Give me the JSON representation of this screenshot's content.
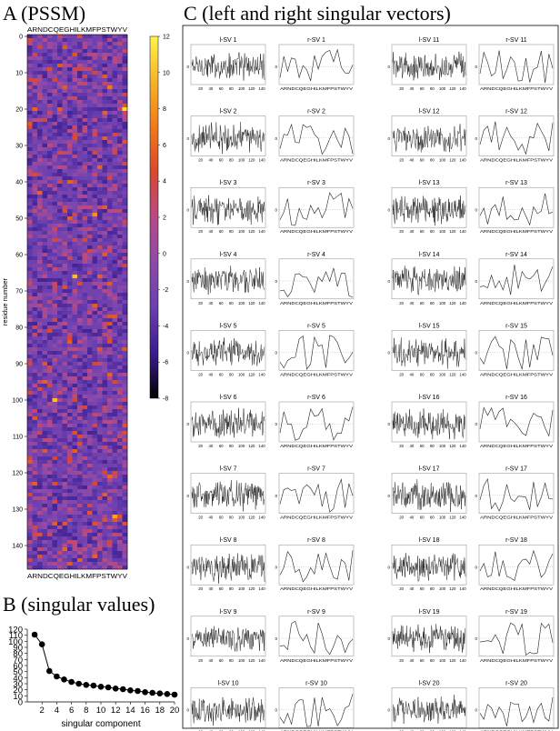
{
  "panels": {
    "a_title": "A (PSSM)",
    "b_title": "B (singular values)",
    "c_title": "C (left and right singular vectors)"
  },
  "chart_data": [
    {
      "type": "heatmap",
      "title": "A (PSSM)",
      "ylabel": "residue number",
      "columns_label": "ARNDCQEGHILKMFPSTWYV",
      "rows": 147,
      "y_ticks": [
        0,
        10,
        20,
        30,
        40,
        50,
        60,
        70,
        80,
        90,
        100,
        110,
        120,
        130,
        140
      ],
      "colorbar_ticks": [
        12,
        10,
        8,
        6,
        4,
        2,
        0,
        -2,
        -4,
        -6,
        -8
      ],
      "zlim": [
        -8,
        12
      ],
      "colormap": [
        "#000000",
        "#3b1d8f",
        "#6a3fb0",
        "#8c4aa8",
        "#b84a85",
        "#d9482f",
        "#f07a1a",
        "#f7b326",
        "#fff44a"
      ],
      "highlighted_cells": [
        {
          "row": 20,
          "col": "V",
          "value": 11
        },
        {
          "row": 66,
          "col": "I",
          "value": 10
        },
        {
          "row": 100,
          "col": "Q",
          "value": 10
        },
        {
          "row": 132,
          "col": "W",
          "value": 9
        },
        {
          "row": 49,
          "col": "F",
          "value": 8
        },
        {
          "row": 14,
          "col": "T",
          "value": 7
        }
      ]
    },
    {
      "type": "line",
      "title": "B (singular values)",
      "xlabel": "singular component",
      "x": [
        1,
        2,
        3,
        4,
        5,
        6,
        7,
        8,
        9,
        10,
        11,
        12,
        13,
        14,
        15,
        16,
        17,
        18,
        19,
        20
      ],
      "values": [
        111,
        95,
        51,
        42,
        37,
        33,
        30,
        28,
        27,
        25,
        24,
        22,
        21,
        19,
        18,
        16,
        15,
        14,
        13,
        12
      ],
      "xlim": [
        0,
        20
      ],
      "ylim": [
        0,
        120
      ],
      "x_ticks": [
        2,
        4,
        6,
        8,
        10,
        12,
        14,
        16,
        18,
        20
      ],
      "y_ticks": [
        0,
        10,
        20,
        30,
        40,
        50,
        60,
        70,
        80,
        90,
        100,
        110,
        120
      ],
      "marker": "filled-circle"
    },
    {
      "type": "line",
      "title": "C (left and right singular vectors)",
      "left_vectors": [
        "l-SV 1",
        "l-SV 2",
        "l-SV 3",
        "l-SV 4",
        "l-SV 5",
        "l-SV 6",
        "l-SV 7",
        "l-SV 8",
        "l-SV 9",
        "l-SV 10",
        "l-SV 11",
        "l-SV 12",
        "l-SV 13",
        "l-SV 14",
        "l-SV 15",
        "l-SV 16",
        "l-SV 17",
        "l-SV 18",
        "l-SV 19",
        "l-SV 20"
      ],
      "right_vectors": [
        "r-SV 1",
        "r-SV 2",
        "r-SV 3",
        "r-SV 4",
        "r-SV 5",
        "r-SV 6",
        "r-SV 7",
        "r-SV 8",
        "r-SV 9",
        "r-SV 10",
        "r-SV 11",
        "r-SV 12",
        "r-SV 13",
        "r-SV 14",
        "r-SV 15",
        "r-SV 16",
        "r-SV 17",
        "r-SV 18",
        "r-SV 19",
        "r-SV 20"
      ],
      "left_x_ticks": [
        20,
        40,
        60,
        80,
        100,
        120,
        140
      ],
      "left_xlim": [
        1,
        147
      ],
      "right_x_ticklabel": "ARNDCQEGHILKMFPSTWYV",
      "y_tick": "0"
    }
  ]
}
